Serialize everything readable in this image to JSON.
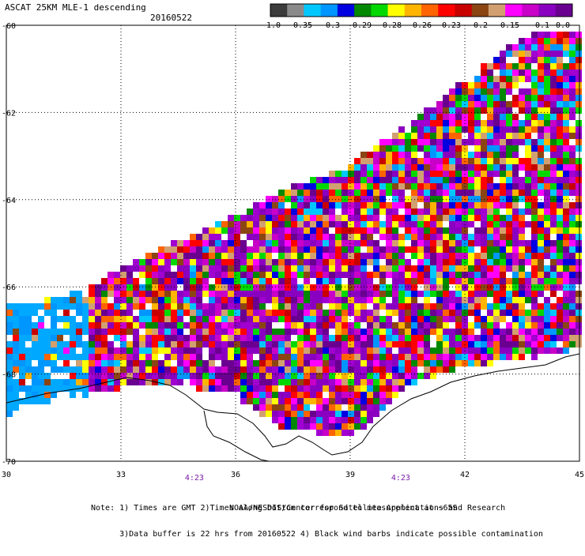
{
  "header": {
    "title": "ASCAT 25KM MLE-1 descending",
    "date": "20160522"
  },
  "colorbar": {
    "labels": [
      "-1.0",
      "-0.35",
      "-0.3",
      "-0.29",
      "-0.28",
      "-0.26",
      "-0.23",
      "-0.2",
      "-0.15",
      "-0.1",
      "0.0"
    ],
    "colors": [
      "#3c3c3c",
      "#8a8a8a",
      "#00c8ff",
      "#0096ff",
      "#0000e0",
      "#008800",
      "#00d800",
      "#ffff00",
      "#ffb400",
      "#ff6400",
      "#ff0000",
      "#c80000",
      "#8b4513",
      "#d2a070",
      "#ff00ff",
      "#c800c8",
      "#8a00c0",
      "#6a0090"
    ]
  },
  "map": {
    "lat_labels": [
      "-60",
      "-62",
      "-64",
      "-66",
      "-68",
      "-70"
    ],
    "lon_labels": [
      "30",
      "33",
      "36",
      "39",
      "42",
      "45"
    ],
    "lat_range": [
      -70,
      -60
    ],
    "lon_range": [
      30,
      45
    ],
    "time_labels": [
      {
        "label": "4:23",
        "lon": 34.9
      },
      {
        "label": "4:23",
        "lon": 40.3
      }
    ],
    "coastline": "antarctic-coast",
    "grid": "dotted"
  },
  "footer": {
    "note_line1": "Note: 1) Times are GMT 2)Times along bottom correspond to measurement at ~65S",
    "note_line2": "      3)Data buffer is 22 hrs from 20160522 4) Black wind barbs indicate possible contamination",
    "credit": "NOAA/NESDIS/Center for Satellite Applications and Research"
  }
}
